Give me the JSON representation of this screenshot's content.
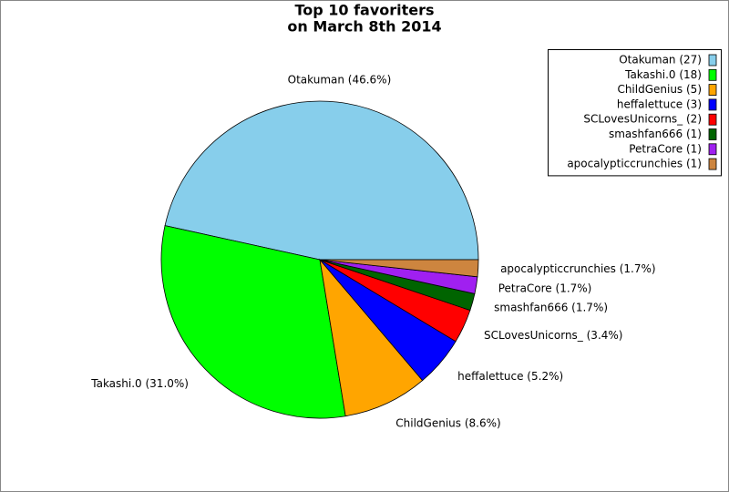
{
  "chart_data": {
    "type": "pie",
    "title": [
      "Top 10 favoriters",
      "on March 8th 2014"
    ],
    "values": [
      27,
      18,
      5,
      3,
      2,
      1,
      1,
      1
    ],
    "legend_labels": [
      "Otakuman (27)",
      "Takashi.0 (18)",
      "ChildGenius (5)",
      "heffalettuce (3)",
      "SCLovesUnicorns_ (2)",
      "smashfan666 (1)",
      "PetraCore (1)",
      "apocalypticcrunchies (1)"
    ],
    "slice_labels": [
      "Otakuman (46.6%)",
      "Takashi.0 (31.0%)",
      "ChildGenius (8.6%)",
      "heffalettuce (5.2%)",
      "SCLovesUnicorns_ (3.4%)",
      "smashfan666 (1.7%)",
      "PetraCore (1.7%)",
      "apocalypticcrunchies (1.7%)"
    ],
    "colors": [
      "#87ceeb",
      "#00ff00",
      "#ffa500",
      "#0000ff",
      "#ff0000",
      "#006400",
      "#a020f0",
      "#cd853f"
    ],
    "legend": "upper right"
  }
}
